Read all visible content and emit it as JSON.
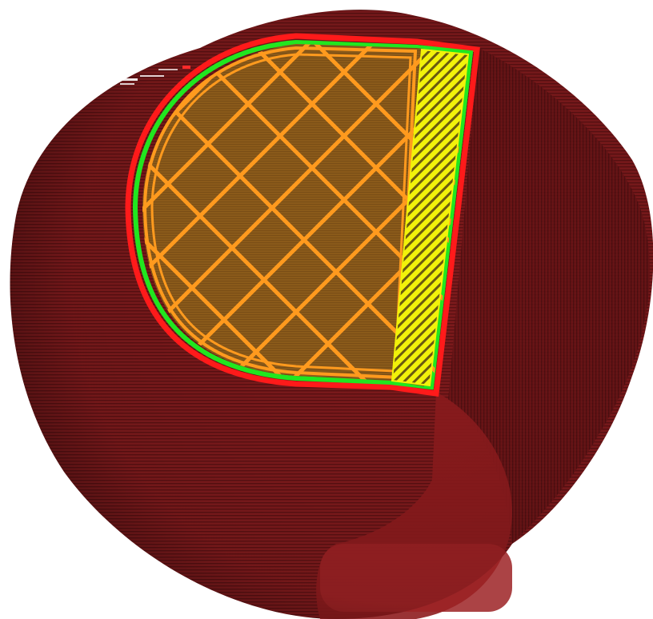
{
  "colors": {
    "background": "#ffffff",
    "shell_outer": "#4a1618",
    "shell_main": "#7e1a1c",
    "shell_light": "#9c2224",
    "shell_lines": "#5a1012",
    "perimeter_outer": "#ff1a1a",
    "perimeter_inner": "#21e61f",
    "infill_line": "#ff9a1e",
    "infill_fill": "#8a5a1a",
    "infill_fill_dark": "#6e4515",
    "solid_infill": "#f2f20a",
    "solid_infill_stripe": "#6a5a10"
  },
  "icons": {
    "wall_outer": "outer-perimeter-icon",
    "wall_inner": "inner-perimeter-icon",
    "sparse_infill": "sparse-infill-icon",
    "solid_infill": "solid-infill-icon"
  }
}
